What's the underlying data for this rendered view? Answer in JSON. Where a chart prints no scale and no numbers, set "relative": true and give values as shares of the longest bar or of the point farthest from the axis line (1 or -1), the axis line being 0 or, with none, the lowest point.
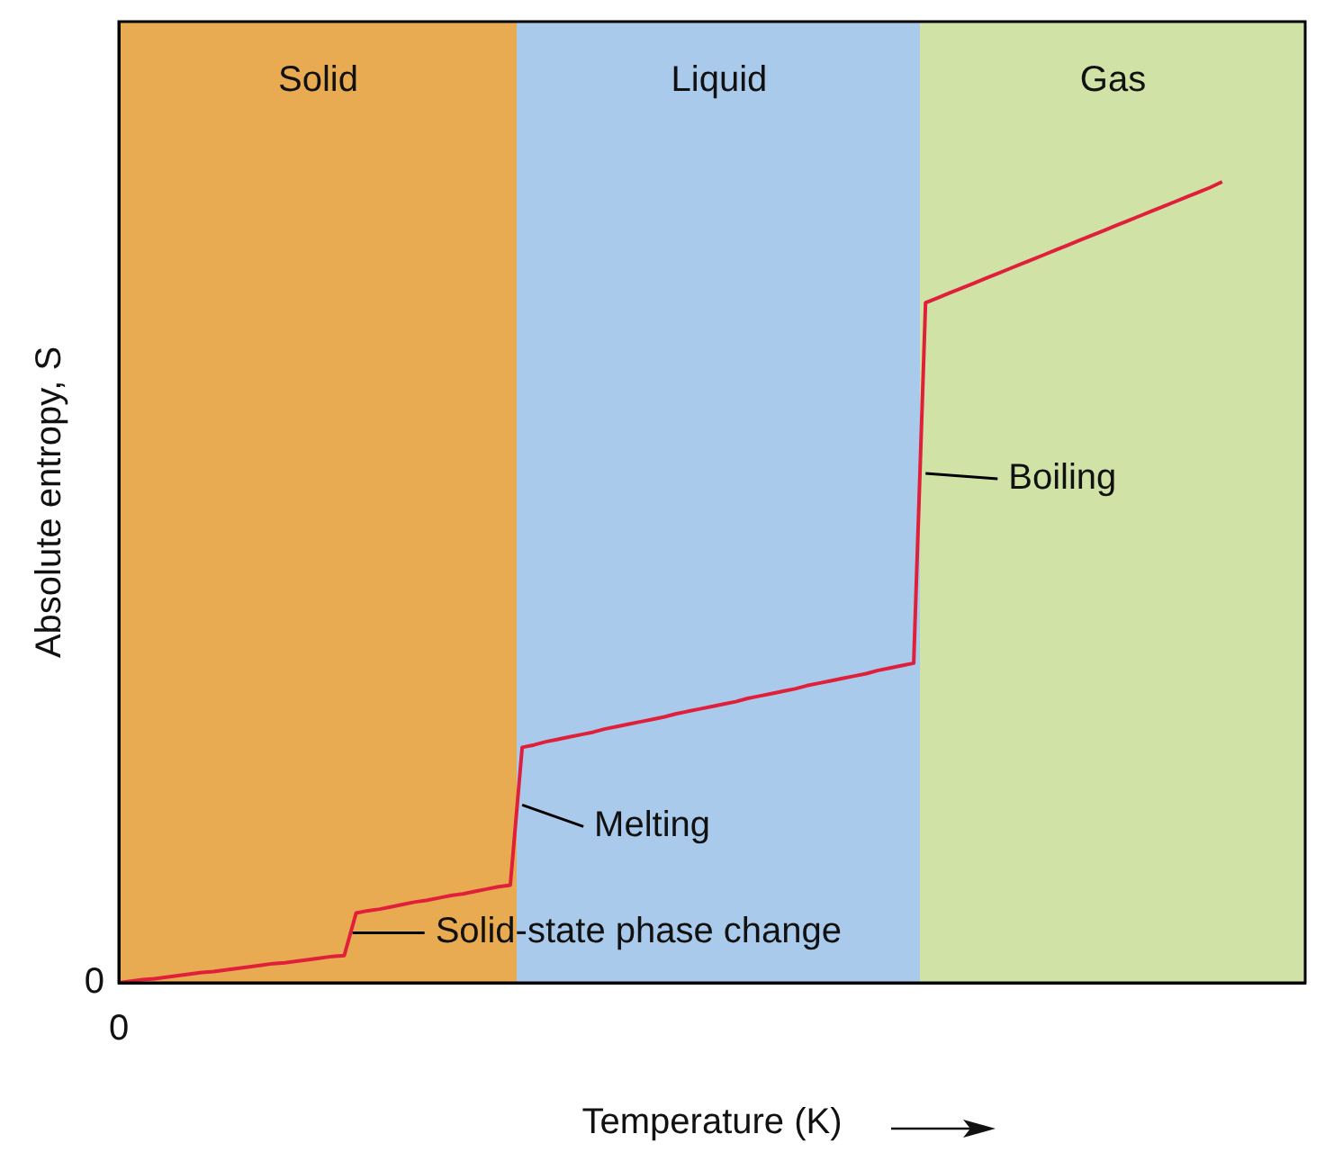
{
  "chart_data": {
    "type": "line",
    "relative": true,
    "xlabel": "Temperature (K)",
    "ylabel": "Absolute entropy, S",
    "categories": [
      null,
      null,
      null,
      null,
      null,
      null,
      null,
      null,
      null,
      null,
      null,
      null,
      null,
      null,
      null,
      null,
      null,
      null,
      null,
      null,
      null,
      null,
      null,
      null,
      null,
      null,
      null,
      null,
      null,
      null,
      null,
      null,
      null,
      null,
      null,
      null,
      null,
      null,
      null,
      null,
      null,
      null,
      null,
      null,
      null,
      null,
      null,
      null,
      null,
      null,
      null,
      null,
      null,
      null,
      null,
      null,
      null,
      null,
      null,
      null,
      null,
      null,
      null,
      null,
      null,
      null,
      null,
      null,
      null,
      null,
      null,
      null,
      null,
      null,
      null,
      null,
      null,
      null,
      null,
      null,
      null,
      null,
      null,
      null,
      null,
      null,
      null,
      null,
      null,
      null,
      null,
      null,
      null,
      null,
      null,
      null,
      null,
      null,
      null,
      null,
      null
    ],
    "series": [
      {
        "color": "#e0203a",
        "values": [
          0,
          0.002,
          0.004,
          0.005,
          0.007,
          0.009,
          0.011,
          0.013,
          0.014,
          0.016,
          0.018,
          0.02,
          0.022,
          0.024,
          0.025,
          0.027,
          0.029,
          0.031,
          0.033,
          0.034,
          0.087,
          0.09,
          0.092,
          0.095,
          0.098,
          0.101,
          0.103,
          0.106,
          0.109,
          0.111,
          0.114,
          0.117,
          0.12,
          0.122,
          0.294,
          0.297,
          0.301,
          0.304,
          0.307,
          0.31,
          0.313,
          0.317,
          0.32,
          0.323,
          0.326,
          0.329,
          0.332,
          0.336,
          0.339,
          0.342,
          0.345,
          0.348,
          0.351,
          0.355,
          0.358,
          0.361,
          0.364,
          0.367,
          0.371,
          0.374,
          0.377,
          0.38,
          0.383,
          0.386,
          0.39,
          0.393,
          0.396,
          0.399,
          0.849,
          0.855,
          0.861,
          0.867,
          0.873,
          0.879,
          0.885,
          0.891,
          0.897,
          0.903,
          0.909,
          0.915,
          0.921,
          0.927,
          0.933,
          0.939,
          0.945,
          0.951,
          0.957,
          0.963,
          0.969,
          0.975,
          0.981,
          0.987,
          0.993,
          1,
          null,
          null,
          null,
          null,
          null,
          null,
          null
        ]
      }
    ],
    "annotations": [
      "Solid",
      "Liquid",
      "Gas",
      "0",
      "0",
      "Solid-state phase change",
      "Melting",
      "Boiling"
    ],
    "legend": false,
    "marker": "none",
    "line_style": "solid"
  }
}
